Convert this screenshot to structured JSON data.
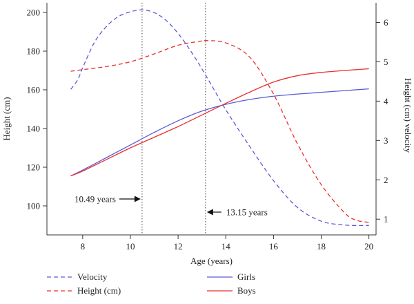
{
  "chart_data": {
    "type": "line",
    "xlabel": "Age (years)",
    "ylabel_left": "Height (cm)",
    "ylabel_right": "Height (cm) velocity",
    "x_range": [
      6.5,
      20.3
    ],
    "y_left_range": [
      85,
      205
    ],
    "y_right_range": [
      0.6,
      6.5
    ],
    "x_ticks": [
      8,
      10,
      12,
      14,
      16,
      18,
      20
    ],
    "y_left_ticks": [
      100,
      120,
      140,
      160,
      180,
      200
    ],
    "y_right_ticks": [
      1,
      2,
      3,
      4,
      5,
      6
    ],
    "series": [
      {
        "name": "Girls",
        "measure": "Height (cm)",
        "axis": "left",
        "color": "#5B5BD6",
        "dash": "solid",
        "x": [
          7.5,
          8,
          9,
          10,
          11,
          12,
          13,
          14,
          15,
          16,
          17,
          18,
          19,
          20
        ],
        "y": [
          115.5,
          118.5,
          125,
          131.5,
          138,
          144,
          149,
          152.5,
          155,
          156.7,
          157.8,
          158.7,
          159.6,
          160.5
        ]
      },
      {
        "name": "Boys",
        "measure": "Height (cm)",
        "axis": "left",
        "color": "#E8302E",
        "dash": "solid",
        "x": [
          7.5,
          8,
          9,
          10,
          11,
          12,
          13,
          14,
          15,
          16,
          17,
          18,
          19,
          20
        ],
        "y": [
          115.5,
          118,
          124,
          130,
          135.5,
          141,
          147,
          153,
          158.8,
          164,
          167.3,
          169,
          170,
          170.9
        ]
      },
      {
        "name": "Girls",
        "measure": "Velocity",
        "axis": "right",
        "color": "#5B5BD6",
        "dash": "dashed",
        "x": [
          7.5,
          7.8,
          8,
          8.5,
          9,
          9.5,
          10,
          10.49,
          11,
          11.5,
          12,
          12.5,
          13,
          13.5,
          14,
          15,
          16,
          17,
          18,
          19,
          20
        ],
        "y": [
          4.3,
          4.55,
          4.85,
          5.5,
          5.9,
          6.15,
          6.27,
          6.32,
          6.25,
          6.05,
          5.72,
          5.3,
          4.82,
          4.3,
          3.78,
          2.85,
          1.98,
          1.3,
          0.95,
          0.85,
          0.84
        ]
      },
      {
        "name": "Boys",
        "measure": "Velocity",
        "axis": "right",
        "color": "#E8302E",
        "dash": "dashed",
        "x": [
          7.5,
          8,
          9,
          10,
          11,
          12,
          13,
          13.15,
          14,
          15,
          16,
          17,
          18,
          19,
          19.5,
          20
        ],
        "y": [
          4.76,
          4.8,
          4.88,
          5.0,
          5.2,
          5.42,
          5.53,
          5.54,
          5.48,
          5.12,
          4.18,
          2.92,
          1.88,
          1.15,
          0.97,
          0.92
        ]
      }
    ],
    "annotations": [
      {
        "label": "10.49 years",
        "x": 10.49,
        "arrow": "right"
      },
      {
        "label": "13.15 years",
        "x": 13.15,
        "arrow": "left"
      }
    ],
    "legend": {
      "placement": "bottom",
      "items": [
        {
          "label": "Velocity",
          "style": "dashed",
          "color": "#5B5BD6"
        },
        {
          "label": "Height (cm)",
          "style": "dashed",
          "color": "#E8302E"
        },
        {
          "label": "Girls",
          "style": "solid",
          "color": "#5B5BD6"
        },
        {
          "label": "Boys",
          "style": "solid",
          "color": "#E8302E"
        }
      ]
    },
    "grid": false
  }
}
